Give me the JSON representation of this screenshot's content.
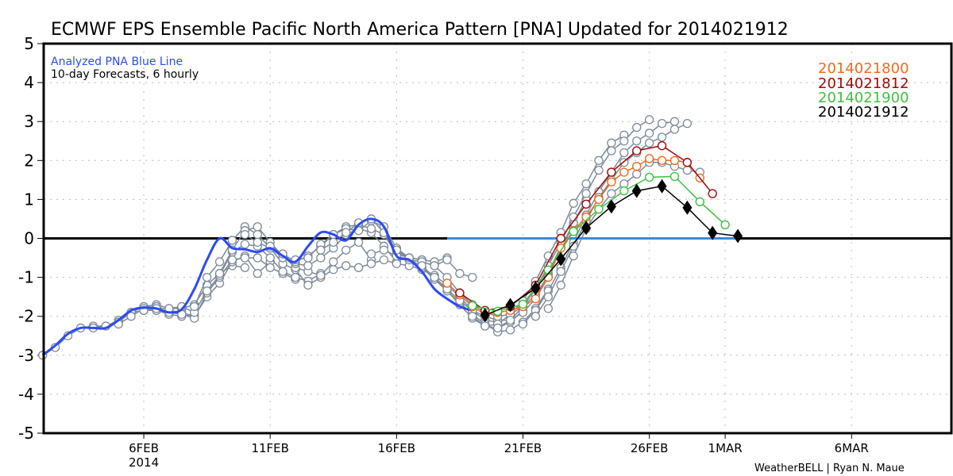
{
  "chart_data": {
    "type": "line",
    "title": "ECMWF EPS Ensemble Pacific North America Pattern [PNA] Updated for 2014021912",
    "xlabel": "",
    "ylabel": "",
    "x_units": "days since 1 Feb 2014 00Z",
    "xlim": [
      1.04,
      36.95
    ],
    "ylim": [
      -5,
      5
    ],
    "yticks": [
      "5",
      "4",
      "3",
      "2",
      "1",
      "0",
      "-1",
      "-2",
      "-3",
      "-4",
      "-5"
    ],
    "ytick_values": [
      5,
      4,
      3,
      2,
      1,
      0,
      -1,
      -2,
      -3,
      -4,
      -5
    ],
    "xticks": [
      {
        "value": 5,
        "label": "6FEB",
        "sublabel": "2014"
      },
      {
        "value": 10,
        "label": "11FEB",
        "sublabel": ""
      },
      {
        "value": 15,
        "label": "16FEB",
        "sublabel": ""
      },
      {
        "value": 20,
        "label": "21FEB",
        "sublabel": ""
      },
      {
        "value": 25,
        "label": "26FEB",
        "sublabel": ""
      },
      {
        "value": 28,
        "label": "1MAR",
        "sublabel": ""
      },
      {
        "value": 33,
        "label": "6MAR",
        "sublabel": ""
      }
    ],
    "grid": true,
    "annotations": {
      "analyzed_label": "Analyzed PNA Blue Line",
      "forecast_label": "10-day Forecasts, 6 hourly",
      "credit": "WeatherBELL | Ryan N. Maue"
    },
    "legend_position": "top-right",
    "analyzed": {
      "name": "Analyzed PNA",
      "color": "#2b4bf2",
      "x": [
        1.0,
        1.5,
        2.0,
        2.5,
        3.0,
        3.5,
        4.0,
        4.5,
        5.0,
        5.5,
        6.0,
        6.5,
        7.0,
        7.5,
        8.0,
        8.5,
        9.0,
        9.5,
        10.0,
        10.5,
        11.0,
        11.5,
        12.0,
        12.5,
        13.0,
        13.5,
        14.0,
        14.5,
        15.0,
        15.5,
        16.0,
        16.5,
        17.0,
        17.5,
        18.0
      ],
      "y": [
        -3.0,
        -2.75,
        -2.45,
        -2.3,
        -2.3,
        -2.3,
        -2.1,
        -1.85,
        -1.78,
        -1.8,
        -1.9,
        -1.82,
        -1.3,
        -0.55,
        0.0,
        -0.25,
        -0.28,
        -0.35,
        -0.25,
        -0.45,
        -0.6,
        -0.2,
        0.15,
        0.1,
        -0.05,
        0.35,
        0.5,
        0.3,
        -0.45,
        -0.55,
        -0.85,
        -1.3,
        -1.55,
        -1.75,
        -1.85
      ]
    },
    "forecast_series": [
      {
        "name": "2014021800",
        "color": "#f26a1b",
        "x": [
          17.0,
          17.5,
          18.0,
          18.5,
          19.0,
          19.5,
          20.0,
          20.5,
          21.0,
          21.5,
          22.0,
          22.5,
          23.0,
          23.5,
          24.0,
          24.5,
          25.0,
          25.5,
          26.0,
          26.5,
          27.0
        ],
        "y": [
          -1.15,
          -1.45,
          -1.75,
          -1.95,
          -1.9,
          -1.85,
          -1.75,
          -1.55,
          -1.0,
          -0.25,
          0.2,
          0.55,
          1.0,
          1.45,
          1.7,
          1.85,
          2.05,
          2.0,
          2.0,
          1.95,
          1.55
        ]
      },
      {
        "name": "2014021812",
        "color": "#a00a0a",
        "x": [
          17.5,
          18.5,
          19.5,
          20.5,
          21.5,
          22.5,
          23.5,
          24.5,
          25.5,
          26.5,
          27.5
        ],
        "y": [
          -1.4,
          -1.85,
          -1.75,
          -1.2,
          0.0,
          0.88,
          1.7,
          2.25,
          2.38,
          1.95,
          1.15
        ]
      },
      {
        "name": "2014021900",
        "color": "#3ec23e",
        "x": [
          18.0,
          19.0,
          20.0,
          21.0,
          22.0,
          23.0,
          24.0,
          25.0,
          26.0,
          27.0,
          28.0
        ],
        "y": [
          -1.73,
          -1.87,
          -1.69,
          -0.81,
          0.18,
          0.75,
          1.22,
          1.57,
          1.59,
          0.94,
          0.35
        ]
      },
      {
        "name": "2014021912",
        "color": "#000000",
        "x": [
          18.5,
          19.5,
          20.5,
          21.5,
          22.5,
          23.5,
          24.5,
          25.5,
          26.5,
          27.5,
          28.5
        ],
        "y": [
          -1.97,
          -1.71,
          -1.28,
          -0.53,
          0.27,
          0.82,
          1.22,
          1.34,
          0.79,
          0.14,
          0.06
        ]
      }
    ],
    "past_forecasts": {
      "color": "#7d8a99",
      "series": [
        {
          "x": [
            1.0,
            1.5,
            2.0,
            2.5,
            3.0,
            3.5,
            4.0,
            4.5,
            5.0,
            5.5,
            6.0,
            6.5,
            7.0
          ],
          "y": [
            -3.0,
            -2.8,
            -2.5,
            -2.3,
            -2.25,
            -2.25,
            -2.1,
            -1.9,
            -1.85,
            -1.85,
            -1.95,
            -2.0,
            -1.95
          ]
        },
        {
          "x": [
            3.0,
            3.5,
            4.0,
            4.5,
            5.0,
            5.5,
            6.0,
            6.5,
            7.0,
            7.5,
            8.0,
            8.5,
            9.0
          ],
          "y": [
            -2.3,
            -2.25,
            -2.15,
            -1.9,
            -1.75,
            -1.7,
            -1.8,
            -1.8,
            -1.7,
            -1.2,
            -0.9,
            -0.7,
            -0.75
          ]
        },
        {
          "x": [
            4.0,
            4.5,
            5.0,
            5.5,
            6.0,
            6.5,
            7.0,
            7.5,
            8.0,
            8.5,
            9.0,
            9.5,
            10.0
          ],
          "y": [
            -2.2,
            -2.0,
            -1.8,
            -1.75,
            -1.85,
            -1.9,
            -2.0,
            -1.5,
            -1.15,
            -0.6,
            -0.45,
            -0.9,
            -0.6
          ]
        },
        {
          "x": [
            5.0,
            5.5,
            6.0,
            6.5,
            7.0,
            7.5,
            8.0,
            8.5,
            9.0,
            9.5,
            10.0,
            10.5,
            11.0
          ],
          "y": [
            -1.85,
            -1.8,
            -1.9,
            -1.95,
            -2.05,
            -1.4,
            -1.0,
            -0.55,
            -0.5,
            -0.5,
            -0.75,
            -0.9,
            -1.05
          ]
        },
        {
          "x": [
            6.0,
            6.5,
            7.0,
            7.5,
            8.0,
            8.5,
            9.0,
            9.5,
            10.0,
            10.5,
            11.0,
            11.5,
            12.0
          ],
          "y": [
            -1.8,
            -1.75,
            -1.9,
            -1.35,
            -0.95,
            -0.35,
            -0.15,
            -0.2,
            -0.5,
            -0.85,
            -1.0,
            -1.1,
            -0.9
          ]
        },
        {
          "x": [
            7.0,
            7.5,
            8.0,
            8.5,
            9.0,
            9.5,
            10.0,
            10.5,
            11.0,
            11.5,
            12.0,
            12.5,
            13.0
          ],
          "y": [
            -1.75,
            -1.0,
            -0.6,
            -0.05,
            0.3,
            0.1,
            -0.25,
            -0.65,
            -0.8,
            -1.2,
            -1.0,
            -0.8,
            -0.7
          ]
        },
        {
          "x": [
            8.0,
            8.5,
            9.0,
            9.5,
            10.0,
            10.5,
            11.0,
            11.5,
            12.0,
            12.5,
            13.0,
            13.5,
            14.0
          ],
          "y": [
            -0.9,
            -0.3,
            0.2,
            0.3,
            -0.1,
            -0.45,
            -0.75,
            -0.85,
            -0.95,
            -0.6,
            -0.3,
            -0.1,
            -0.55
          ]
        },
        {
          "x": [
            9.0,
            9.5,
            10.0,
            10.5,
            11.0,
            11.5,
            12.0,
            12.5,
            13.0,
            13.5,
            14.0,
            14.5,
            15.0
          ],
          "y": [
            0.1,
            -0.1,
            -0.25,
            -0.5,
            -0.65,
            -0.7,
            -0.5,
            -0.25,
            0.1,
            0.25,
            0.15,
            -0.2,
            -0.6
          ]
        },
        {
          "x": [
            10.0,
            10.5,
            11.0,
            11.5,
            12.0,
            12.5,
            13.0,
            13.5,
            14.0,
            14.5,
            15.0,
            15.5,
            16.0
          ],
          "y": [
            -0.2,
            -0.4,
            -0.6,
            -0.45,
            -0.2,
            0.1,
            0.3,
            0.35,
            0.25,
            0.1,
            -0.4,
            -0.5,
            -0.55
          ]
        },
        {
          "x": [
            11.0,
            11.5,
            12.0,
            12.5,
            13.0,
            13.5,
            14.0,
            14.5,
            15.0,
            15.5,
            16.0,
            16.5,
            17.0
          ],
          "y": [
            -0.55,
            -0.5,
            -0.15,
            0.1,
            0.25,
            0.2,
            0.45,
            0.3,
            -0.25,
            -0.5,
            -0.55,
            -0.6,
            -0.5
          ]
        },
        {
          "x": [
            12.0,
            12.5,
            13.0,
            13.5,
            14.0,
            14.5,
            15.0,
            15.5,
            16.0,
            16.5,
            17.0,
            17.5,
            18.0
          ],
          "y": [
            -0.3,
            -0.1,
            0.15,
            0.4,
            0.5,
            0.15,
            -0.3,
            -0.55,
            -0.6,
            -0.7,
            -0.55,
            -0.9,
            -1.0
          ]
        },
        {
          "x": [
            13.0,
            13.5,
            14.0,
            14.5,
            15.0,
            15.5,
            16.0,
            16.5,
            17.0,
            17.5,
            18.0,
            18.5,
            19.0
          ],
          "y": [
            -0.7,
            -0.75,
            -0.65,
            -0.55,
            -0.65,
            -0.7,
            -0.8,
            -0.95,
            -1.2,
            -1.5,
            -1.85,
            -2.1,
            -2.15
          ]
        },
        {
          "x": [
            14.0,
            14.5,
            15.0,
            15.5,
            16.0,
            16.5,
            17.0,
            17.5,
            18.0,
            18.5,
            19.0,
            19.5,
            20.0
          ],
          "y": [
            -0.4,
            -0.3,
            -0.45,
            -0.55,
            -0.75,
            -1.05,
            -1.35,
            -1.7,
            -2.05,
            -2.25,
            -2.3,
            -2.15,
            -1.85
          ]
        },
        {
          "x": [
            15.0,
            15.5,
            16.0,
            16.5,
            17.0,
            17.5,
            18.0,
            18.5,
            19.0,
            19.5,
            20.0,
            20.5,
            21.0
          ],
          "y": [
            -0.3,
            -0.5,
            -0.75,
            -1.0,
            -1.35,
            -1.65,
            -1.95,
            -2.2,
            -2.4,
            -2.35,
            -2.15,
            -1.8,
            -1.3
          ]
        },
        {
          "x": [
            16.0,
            16.5,
            17.0,
            17.5,
            18.0,
            18.5,
            19.0,
            19.5,
            20.0,
            20.5,
            21.0,
            21.5,
            22.0
          ],
          "y": [
            -0.7,
            -1.0,
            -1.3,
            -1.6,
            -1.85,
            -2.0,
            -2.1,
            -2.1,
            -1.9,
            -1.55,
            -0.9,
            -0.2,
            0.3
          ]
        },
        {
          "x": [
            16.5,
            17.0,
            17.5,
            18.0,
            18.5,
            19.0,
            19.5,
            20.0,
            20.5,
            21.0,
            21.5,
            22.0,
            22.5
          ],
          "y": [
            -0.7,
            -1.0,
            -1.4,
            -1.7,
            -1.9,
            -2.0,
            -1.95,
            -1.75,
            -1.45,
            -0.95,
            -0.25,
            0.4,
            1.0
          ]
        },
        {
          "x": [
            18.0,
            18.5,
            19.0,
            19.5,
            20.0,
            20.5,
            21.0,
            21.5,
            22.0,
            22.5,
            23.0,
            23.5,
            24.0
          ],
          "y": [
            -2.0,
            -2.25,
            -2.2,
            -1.95,
            -1.6,
            -1.1,
            -0.45,
            0.15,
            0.9,
            1.4,
            2.0,
            2.45,
            2.65
          ]
        },
        {
          "x": [
            19.0,
            19.5,
            20.0,
            20.5,
            21.0,
            21.5,
            22.0,
            22.5,
            23.0,
            23.5,
            24.0,
            24.5,
            25.0
          ],
          "y": [
            -2.3,
            -2.1,
            -1.75,
            -1.3,
            -0.7,
            -0.1,
            0.55,
            1.15,
            1.75,
            2.25,
            2.5,
            2.85,
            3.05
          ]
        },
        {
          "x": [
            20.0,
            20.5,
            21.0,
            21.5,
            22.0,
            22.5,
            23.0,
            23.5,
            24.0,
            24.5,
            25.0,
            25.5,
            26.0
          ],
          "y": [
            -2.2,
            -1.85,
            -1.35,
            -0.75,
            -0.1,
            0.6,
            1.2,
            1.7,
            2.2,
            2.5,
            2.7,
            2.95,
            3.0
          ]
        },
        {
          "x": [
            20.5,
            21.0,
            21.5,
            22.0,
            22.5,
            23.0,
            23.5,
            24.0,
            24.5,
            25.0,
            25.5,
            26.0,
            26.5
          ],
          "y": [
            -2.0,
            -1.5,
            -0.85,
            -0.2,
            0.45,
            1.05,
            1.5,
            1.95,
            2.2,
            2.45,
            2.6,
            2.8,
            2.95
          ]
        },
        {
          "x": [
            21.0,
            21.5,
            22.0,
            22.5,
            23.0,
            23.5,
            24.0,
            24.5,
            25.0,
            25.5,
            26.0,
            26.5,
            27.0
          ],
          "y": [
            -1.8,
            -1.2,
            -0.45,
            0.25,
            0.75,
            1.15,
            1.4,
            1.65,
            1.95,
            1.95,
            1.85,
            1.75,
            1.7
          ]
        }
      ]
    },
    "legend": [
      {
        "label": "2014021800",
        "color": "#f26a1b"
      },
      {
        "label": "2014021812",
        "color": "#a00a0a"
      },
      {
        "label": "2014021900",
        "color": "#3ec23e"
      },
      {
        "label": "2014021912",
        "color": "#000000"
      }
    ],
    "zero_line_overlay": {
      "color": "#3b8bd8",
      "x_start": 17.0,
      "x_end": 28.5,
      "y": 0
    }
  }
}
